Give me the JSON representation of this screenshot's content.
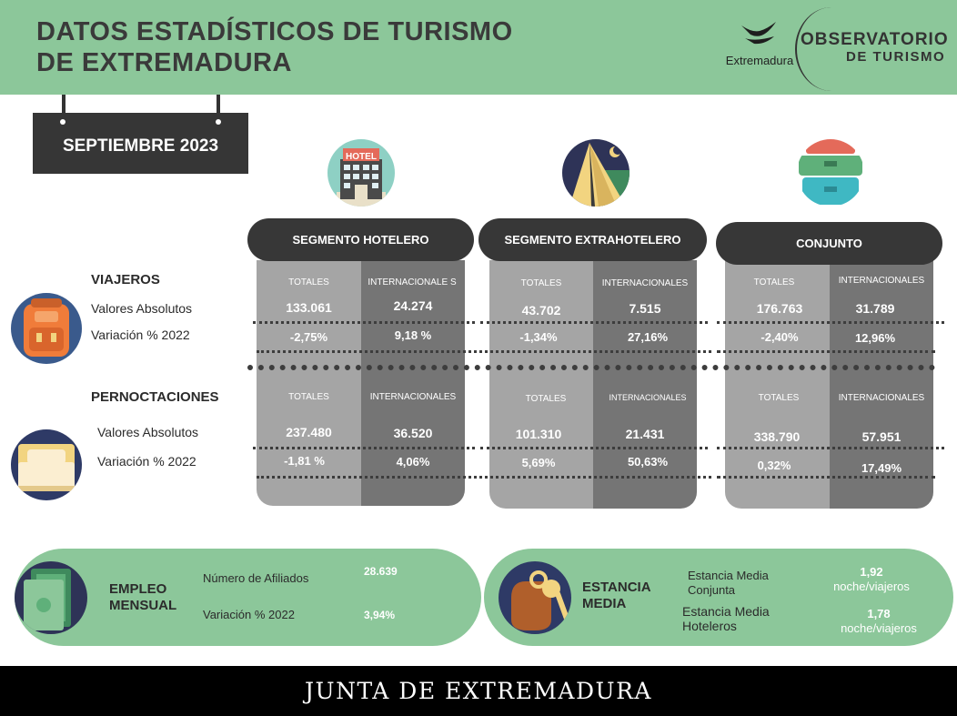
{
  "header": {
    "title_line1": "DATOS ESTADÍSTICOS DE TURISMO",
    "title_line2": "DE EXTREMADURA",
    "logo_region": "Extremadura",
    "observatory_title": "OBSERVATORIO",
    "observatory_sub": "DE TURISMO"
  },
  "period": "SEPTIEMBRE 2023",
  "icons": {
    "hotel": "hotel-icon",
    "extrahotel": "tent-icon",
    "conjunto": "suitcases-icon",
    "viajeros": "backpack-icon",
    "pernoctaciones": "bed-icon",
    "empleo": "money-icon",
    "estancia": "key-icon",
    "hotel_sign": "HOTEL"
  },
  "rows": {
    "viajeros": "VIAJEROS",
    "pernoctaciones": "PERNOCTACIONES",
    "abs_v": "Valores Absolutos",
    "var_v": "Variación % 2022",
    "abs_p": "Valores Absolutos",
    "var_p": "Variación % 2022"
  },
  "segments": {
    "hotelero": {
      "title": "SEGMENTO HOTELERO",
      "v_tot_h": "TOTALES",
      "v_int_h": "INTERNACIONALE S",
      "v_tot_abs": "133.061",
      "v_int_abs": "24.274",
      "v_tot_var": "-2,75%",
      "v_int_var": "9,18 %",
      "p_tot_h": "TOTALES",
      "p_int_h": "INTERNACIONALES",
      "p_tot_abs": "237.480",
      "p_int_abs": "36.520",
      "p_tot_var": "-1,81 %",
      "p_int_var": "4,06%"
    },
    "extrahotelero": {
      "title": "SEGMENTO EXTRAHOTELERO",
      "v_tot_h": "TOTALES",
      "v_int_h": "INTERNACIONALES",
      "v_tot_abs": "43.702",
      "v_int_abs": "7.515",
      "v_tot_var": "-1,34%",
      "v_int_var": "27,16%",
      "p_tot_h": "TOTALES",
      "p_int_h": "INTERNACIONALES",
      "p_tot_abs": "101.310",
      "p_int_abs": "21.431",
      "p_tot_var": "5,69%",
      "p_int_var": "50,63%"
    },
    "conjunto": {
      "title": "CONJUNTO",
      "v_tot_h": "TOTALES",
      "v_int_h": "INTERNACIONALES",
      "v_tot_abs": "176.763",
      "v_int_abs": "31.789",
      "v_tot_var": "-2,40%",
      "v_int_var": "12,96%",
      "p_tot_h": "TOTALES",
      "p_int_h": "INTERNACIONALES",
      "p_tot_abs": "338.790",
      "p_int_abs": "57.951",
      "p_tot_var": "0,32%",
      "p_int_var": "17,49%"
    }
  },
  "empleo": {
    "title_line1": "EMPLEO",
    "title_line2": "MENSUAL",
    "afiliados_label": "Número de Afiliados",
    "afiliados_value": "28.639",
    "variacion_label": "Variación % 2022",
    "variacion_value": "3,94%"
  },
  "estancia": {
    "title_line1": "ESTANCIA",
    "title_line2": "MEDIA",
    "conjunta_label1": "Estancia Media",
    "conjunta_label2": "Conjunta",
    "conjunta_value": "1,92",
    "conjunta_unit": "noche/viajeros",
    "hoteleros_label1": "Estancia Media",
    "hoteleros_label2": "Hoteleros",
    "hoteleros_value": "1,78",
    "hoteleros_unit": "noche/viajeros"
  },
  "footer": "JUNTA DE EXTREMADURA",
  "colors": {
    "brand_green": "#8cc79a",
    "dark": "#373737",
    "col_light": "#a5a5a5",
    "col_dark": "#757575"
  }
}
